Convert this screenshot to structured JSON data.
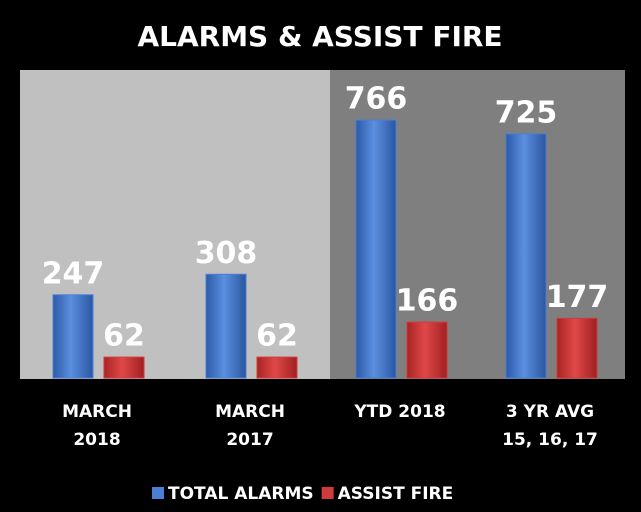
{
  "chart_data": {
    "type": "bar",
    "title": "ALARMS & ASSIST FIRE",
    "categories": [
      "MARCH 2018",
      "MARCH 2017",
      "YTD 2018",
      "3 YR AVG 15, 16, 17"
    ],
    "series": [
      {
        "name": "TOTAL ALARMS",
        "color": "#4a7fd6",
        "values": [
          247,
          308,
          766,
          725
        ]
      },
      {
        "name": "ASSIST FIRE",
        "color": "#d03a3a",
        "values": [
          62,
          62,
          166,
          177
        ]
      }
    ],
    "legend": "bottom"
  }
}
